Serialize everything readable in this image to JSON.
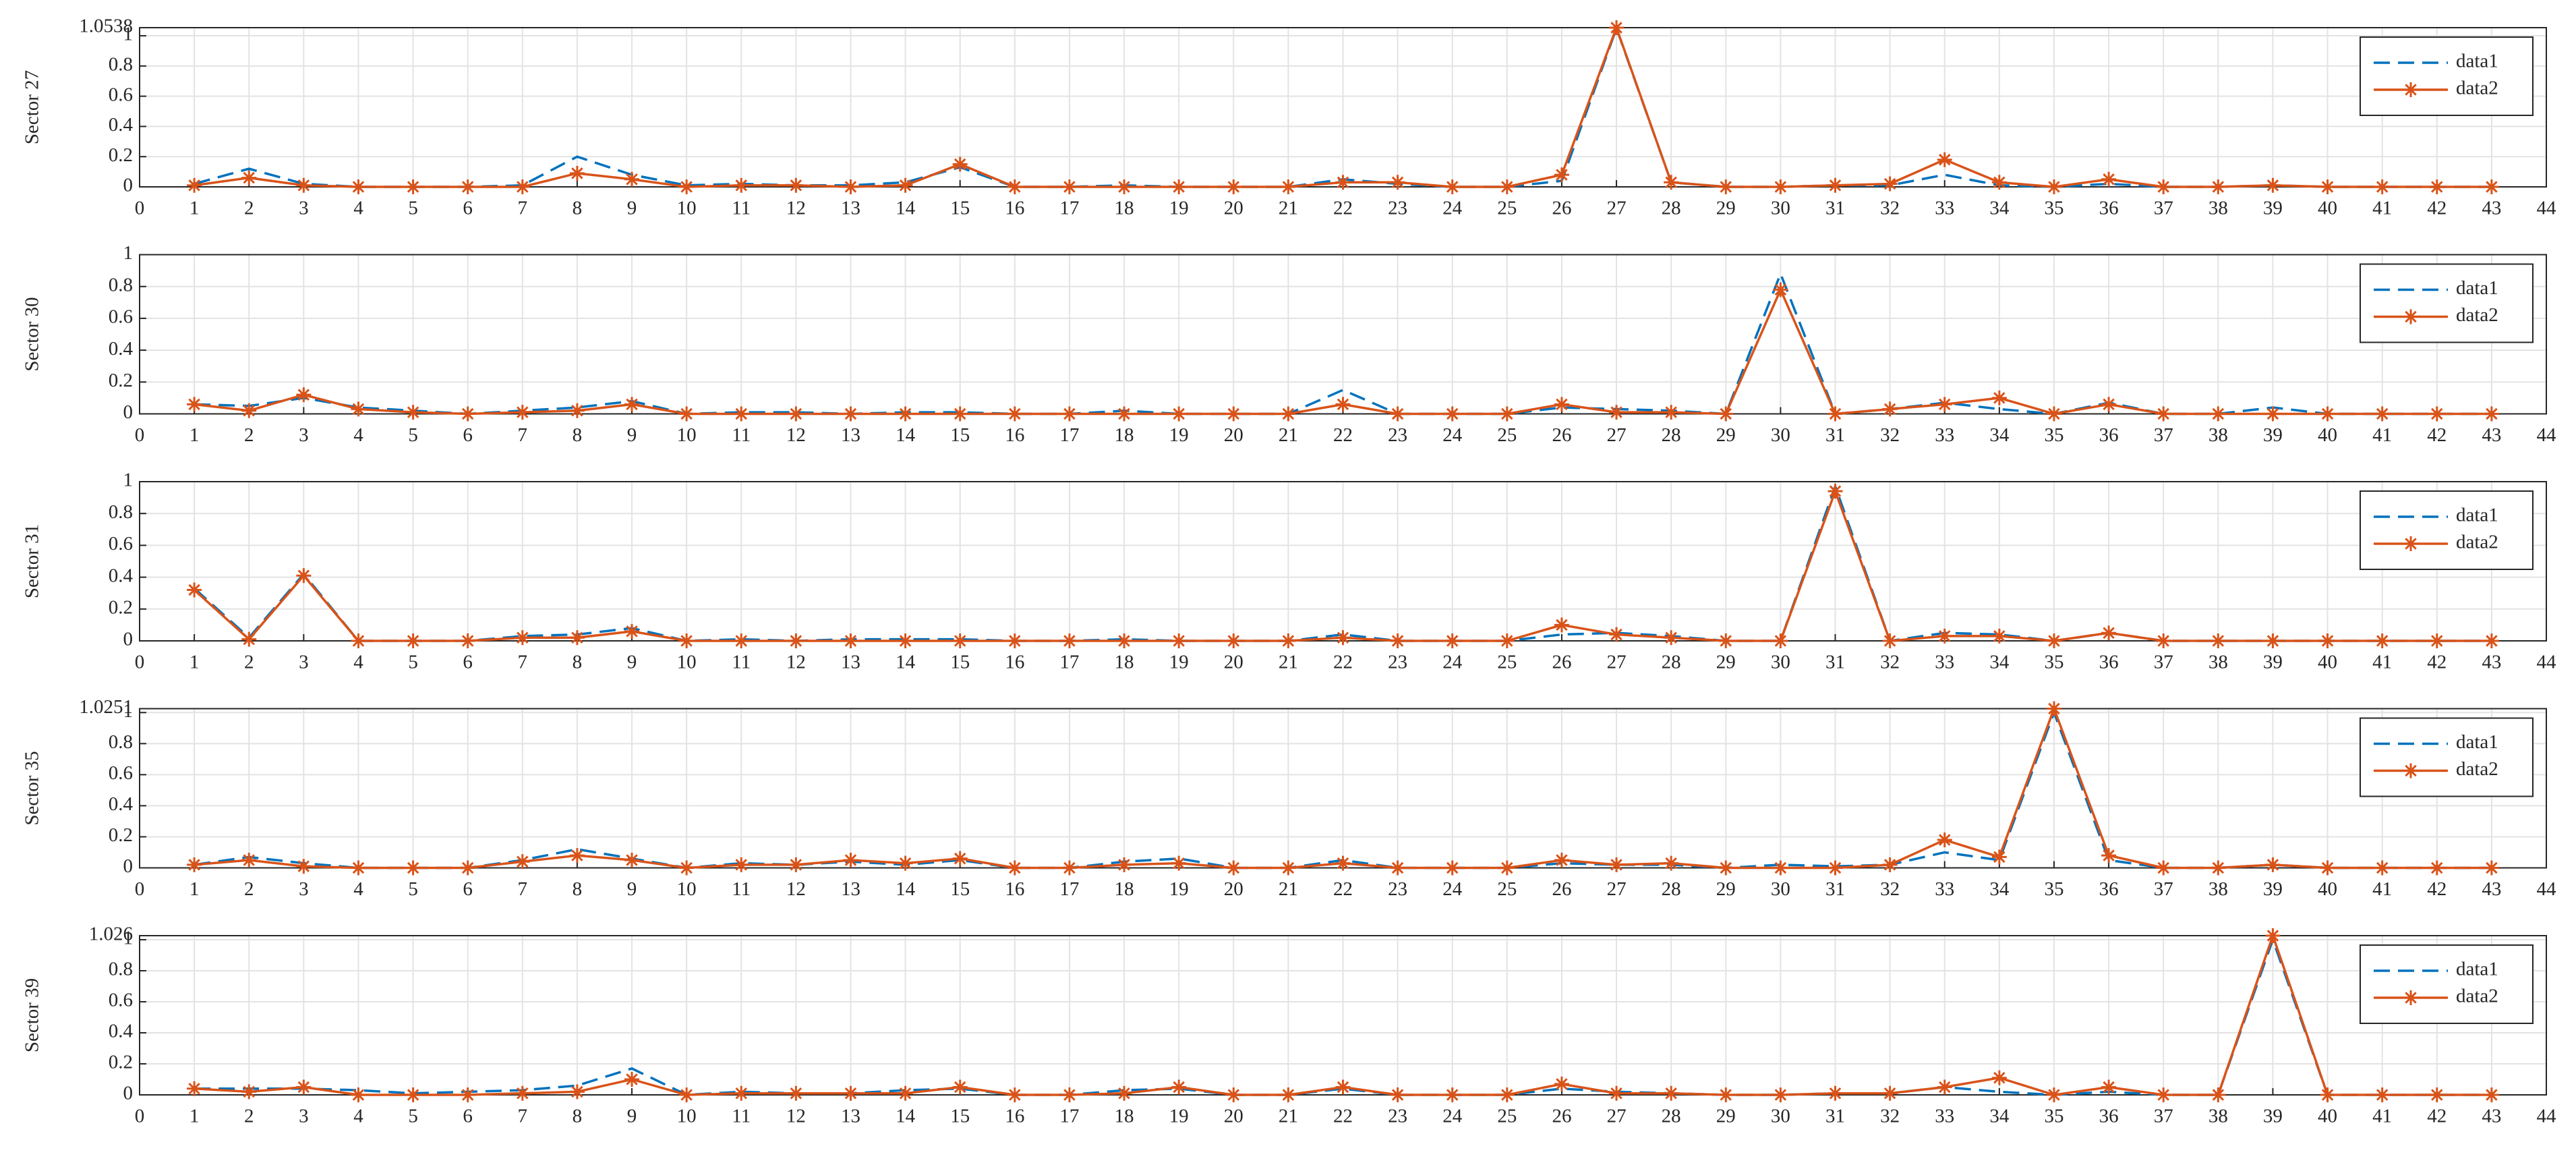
{
  "chart_data": [
    {
      "type": "line",
      "ylabel": "Sector 27",
      "grid": true,
      "legend": "northeast",
      "x": [
        1,
        2,
        3,
        4,
        5,
        6,
        7,
        8,
        9,
        10,
        11,
        12,
        13,
        14,
        15,
        16,
        17,
        18,
        19,
        20,
        21,
        22,
        23,
        24,
        25,
        26,
        27,
        28,
        29,
        30,
        31,
        32,
        33,
        34,
        35,
        36,
        37,
        38,
        39,
        40,
        41,
        42,
        43
      ],
      "xlim": [
        0,
        44
      ],
      "xticks": [
        0,
        1,
        2,
        3,
        4,
        5,
        6,
        7,
        8,
        9,
        10,
        11,
        12,
        13,
        14,
        15,
        16,
        17,
        18,
        19,
        20,
        21,
        22,
        23,
        24,
        25,
        26,
        27,
        28,
        29,
        30,
        31,
        32,
        33,
        34,
        35,
        36,
        37,
        38,
        39,
        40,
        41,
        42,
        43,
        44
      ],
      "ylim": [
        0,
        1.0538
      ],
      "yticks": [
        0,
        0.2,
        0.4,
        0.6,
        0.8,
        1,
        1.0538
      ],
      "series": [
        {
          "name": "data1",
          "color": "#0072bd",
          "line_style": "dashed",
          "marker": "none",
          "values": [
            0.02,
            0.12,
            0.02,
            0,
            0,
            0,
            0.01,
            0.2,
            0.08,
            0.01,
            0.02,
            0.01,
            0.01,
            0.03,
            0.13,
            0,
            0,
            0.01,
            0,
            0,
            0,
            0.05,
            0.02,
            0,
            0,
            0.04,
            1.05,
            0.03,
            0,
            0,
            0.01,
            0.01,
            0.08,
            0.01,
            0,
            0.02,
            0,
            0,
            0.01,
            0,
            0,
            0,
            0
          ]
        },
        {
          "name": "data2",
          "color": "#d95319",
          "line_style": "solid",
          "marker": "asterisk",
          "values": [
            0.01,
            0.06,
            0.01,
            0,
            0,
            0,
            0,
            0.09,
            0.05,
            0,
            0.01,
            0.01,
            0,
            0.01,
            0.15,
            0,
            0,
            0,
            0,
            0,
            0,
            0.03,
            0.03,
            0,
            0,
            0.08,
            1.0538,
            0.03,
            0,
            0,
            0.01,
            0.02,
            0.18,
            0.03,
            0,
            0.05,
            0,
            0,
            0.01,
            0,
            0,
            0,
            0
          ]
        }
      ]
    },
    {
      "type": "line",
      "ylabel": "Sector 30",
      "grid": true,
      "legend": "northeast",
      "x": [
        1,
        2,
        3,
        4,
        5,
        6,
        7,
        8,
        9,
        10,
        11,
        12,
        13,
        14,
        15,
        16,
        17,
        18,
        19,
        20,
        21,
        22,
        23,
        24,
        25,
        26,
        27,
        28,
        29,
        30,
        31,
        32,
        33,
        34,
        35,
        36,
        37,
        38,
        39,
        40,
        41,
        42,
        43
      ],
      "xlim": [
        0,
        44
      ],
      "xticks": [
        0,
        1,
        2,
        3,
        4,
        5,
        6,
        7,
        8,
        9,
        10,
        11,
        12,
        13,
        14,
        15,
        16,
        17,
        18,
        19,
        20,
        21,
        22,
        23,
        24,
        25,
        26,
        27,
        28,
        29,
        30,
        31,
        32,
        33,
        34,
        35,
        36,
        37,
        38,
        39,
        40,
        41,
        42,
        43,
        44
      ],
      "ylim": [
        0,
        1
      ],
      "yticks": [
        0,
        0.2,
        0.4,
        0.6,
        0.8,
        1
      ],
      "series": [
        {
          "name": "data1",
          "color": "#0072bd",
          "line_style": "dashed",
          "marker": "none",
          "values": [
            0.06,
            0.05,
            0.1,
            0.04,
            0.02,
            0,
            0.02,
            0.04,
            0.08,
            0,
            0.01,
            0.01,
            0,
            0.01,
            0.01,
            0,
            0,
            0.02,
            0,
            0,
            0,
            0.15,
            0,
            0,
            0,
            0.04,
            0.03,
            0.02,
            0,
            0.88,
            0,
            0.03,
            0.07,
            0.03,
            0,
            0.07,
            0,
            0,
            0.04,
            0,
            0,
            0,
            0
          ]
        },
        {
          "name": "data2",
          "color": "#d95319",
          "line_style": "solid",
          "marker": "asterisk",
          "values": [
            0.06,
            0.02,
            0.12,
            0.03,
            0.01,
            0,
            0.01,
            0.02,
            0.06,
            0,
            0,
            0,
            0,
            0,
            0,
            0,
            0,
            0,
            0,
            0,
            0,
            0.06,
            0,
            0,
            0,
            0.06,
            0.01,
            0.01,
            0,
            0.78,
            0,
            0.03,
            0.06,
            0.1,
            0,
            0.06,
            0,
            0,
            0,
            0,
            0,
            0,
            0
          ]
        }
      ]
    },
    {
      "type": "line",
      "ylabel": "Sector 31",
      "grid": true,
      "legend": "northeast",
      "x": [
        1,
        2,
        3,
        4,
        5,
        6,
        7,
        8,
        9,
        10,
        11,
        12,
        13,
        14,
        15,
        16,
        17,
        18,
        19,
        20,
        21,
        22,
        23,
        24,
        25,
        26,
        27,
        28,
        29,
        30,
        31,
        32,
        33,
        34,
        35,
        36,
        37,
        38,
        39,
        40,
        41,
        42,
        43
      ],
      "xlim": [
        0,
        44
      ],
      "xticks": [
        0,
        1,
        2,
        3,
        4,
        5,
        6,
        7,
        8,
        9,
        10,
        11,
        12,
        13,
        14,
        15,
        16,
        17,
        18,
        19,
        20,
        21,
        22,
        23,
        24,
        25,
        26,
        27,
        28,
        29,
        30,
        31,
        32,
        33,
        34,
        35,
        36,
        37,
        38,
        39,
        40,
        41,
        42,
        43,
        44
      ],
      "ylim": [
        0,
        1
      ],
      "yticks": [
        0,
        0.2,
        0.4,
        0.6,
        0.8,
        1
      ],
      "series": [
        {
          "name": "data1",
          "color": "#0072bd",
          "line_style": "dashed",
          "marker": "none",
          "values": [
            0.33,
            0.02,
            0.42,
            0,
            0,
            0,
            0.03,
            0.04,
            0.08,
            0,
            0.01,
            0,
            0.01,
            0.01,
            0.01,
            0,
            0,
            0.01,
            0,
            0,
            0,
            0.04,
            0,
            0,
            0,
            0.04,
            0.05,
            0.03,
            0,
            0,
            0.97,
            0,
            0.05,
            0.04,
            0,
            0.05,
            0,
            0,
            0,
            0,
            0,
            0,
            0
          ]
        },
        {
          "name": "data2",
          "color": "#d95319",
          "line_style": "solid",
          "marker": "asterisk",
          "values": [
            0.32,
            0.01,
            0.41,
            0,
            0,
            0,
            0.02,
            0.02,
            0.06,
            0,
            0,
            0,
            0,
            0,
            0,
            0,
            0,
            0,
            0,
            0,
            0,
            0.02,
            0,
            0,
            0,
            0.1,
            0.04,
            0.02,
            0,
            0,
            0.94,
            0,
            0.03,
            0.03,
            0,
            0.05,
            0,
            0,
            0,
            0,
            0,
            0,
            0
          ]
        }
      ]
    },
    {
      "type": "line",
      "ylabel": "Sector 35",
      "grid": true,
      "legend": "northeast",
      "x": [
        1,
        2,
        3,
        4,
        5,
        6,
        7,
        8,
        9,
        10,
        11,
        12,
        13,
        14,
        15,
        16,
        17,
        18,
        19,
        20,
        21,
        22,
        23,
        24,
        25,
        26,
        27,
        28,
        29,
        30,
        31,
        32,
        33,
        34,
        35,
        36,
        37,
        38,
        39,
        40,
        41,
        42,
        43
      ],
      "xlim": [
        0,
        44
      ],
      "xticks": [
        0,
        1,
        2,
        3,
        4,
        5,
        6,
        7,
        8,
        9,
        10,
        11,
        12,
        13,
        14,
        15,
        16,
        17,
        18,
        19,
        20,
        21,
        22,
        23,
        24,
        25,
        26,
        27,
        28,
        29,
        30,
        31,
        32,
        33,
        34,
        35,
        36,
        37,
        38,
        39,
        40,
        41,
        42,
        43,
        44
      ],
      "ylim": [
        0,
        1.0251
      ],
      "yticks": [
        0,
        0.2,
        0.4,
        0.6,
        0.8,
        1,
        1.0251
      ],
      "series": [
        {
          "name": "data1",
          "color": "#0072bd",
          "line_style": "dashed",
          "marker": "none",
          "values": [
            0.02,
            0.07,
            0.03,
            0,
            0,
            0,
            0.05,
            0.12,
            0.06,
            0,
            0.03,
            0.02,
            0.04,
            0.02,
            0.05,
            0,
            0,
            0.04,
            0.06,
            0,
            0,
            0.05,
            0,
            0,
            0,
            0.03,
            0.02,
            0.02,
            0,
            0.02,
            0.01,
            0.02,
            0.1,
            0.05,
            1.0,
            0.05,
            0,
            0,
            0.02,
            0,
            0,
            0,
            0
          ]
        },
        {
          "name": "data2",
          "color": "#d95319",
          "line_style": "solid",
          "marker": "asterisk",
          "values": [
            0.02,
            0.05,
            0.01,
            0,
            0,
            0,
            0.04,
            0.08,
            0.05,
            0,
            0.02,
            0.02,
            0.05,
            0.03,
            0.06,
            0,
            0,
            0.02,
            0.03,
            0,
            0,
            0.03,
            0,
            0,
            0,
            0.05,
            0.02,
            0.03,
            0,
            0,
            0,
            0.02,
            0.18,
            0.07,
            1.0251,
            0.08,
            0,
            0,
            0.02,
            0,
            0,
            0,
            0
          ]
        }
      ]
    },
    {
      "type": "line",
      "ylabel": "Sector 39",
      "grid": true,
      "legend": "northeast",
      "x": [
        1,
        2,
        3,
        4,
        5,
        6,
        7,
        8,
        9,
        10,
        11,
        12,
        13,
        14,
        15,
        16,
        17,
        18,
        19,
        20,
        21,
        22,
        23,
        24,
        25,
        26,
        27,
        28,
        29,
        30,
        31,
        32,
        33,
        34,
        35,
        36,
        37,
        38,
        39,
        40,
        41,
        42,
        43
      ],
      "xlim": [
        0,
        44
      ],
      "xticks": [
        0,
        1,
        2,
        3,
        4,
        5,
        6,
        7,
        8,
        9,
        10,
        11,
        12,
        13,
        14,
        15,
        16,
        17,
        18,
        19,
        20,
        21,
        22,
        23,
        24,
        25,
        26,
        27,
        28,
        29,
        30,
        31,
        32,
        33,
        34,
        35,
        36,
        37,
        38,
        39,
        40,
        41,
        42,
        43,
        44
      ],
      "ylim": [
        0,
        1.026
      ],
      "yticks": [
        0,
        0.2,
        0.4,
        0.6,
        0.8,
        1,
        1.026
      ],
      "series": [
        {
          "name": "data1",
          "color": "#0072bd",
          "line_style": "dashed",
          "marker": "none",
          "values": [
            0.04,
            0.04,
            0.04,
            0.03,
            0.01,
            0.02,
            0.03,
            0.06,
            0.17,
            0,
            0.02,
            0.01,
            0.01,
            0.03,
            0.04,
            0,
            0,
            0.03,
            0.04,
            0,
            0,
            0.04,
            0,
            0,
            0,
            0.04,
            0.02,
            0.01,
            0,
            0,
            0.01,
            0.01,
            0.05,
            0.02,
            0,
            0.02,
            0,
            0,
            1.0,
            0,
            0,
            0,
            0
          ]
        },
        {
          "name": "data2",
          "color": "#d95319",
          "line_style": "solid",
          "marker": "asterisk",
          "values": [
            0.04,
            0.02,
            0.05,
            0,
            0,
            0,
            0.01,
            0.02,
            0.1,
            0,
            0.01,
            0.01,
            0.01,
            0.01,
            0.05,
            0,
            0,
            0.01,
            0.05,
            0,
            0,
            0.05,
            0,
            0,
            0,
            0.07,
            0.01,
            0.01,
            0,
            0,
            0.01,
            0.01,
            0.05,
            0.11,
            0,
            0.05,
            0,
            0,
            1.026,
            0,
            0,
            0,
            0
          ]
        }
      ]
    }
  ]
}
